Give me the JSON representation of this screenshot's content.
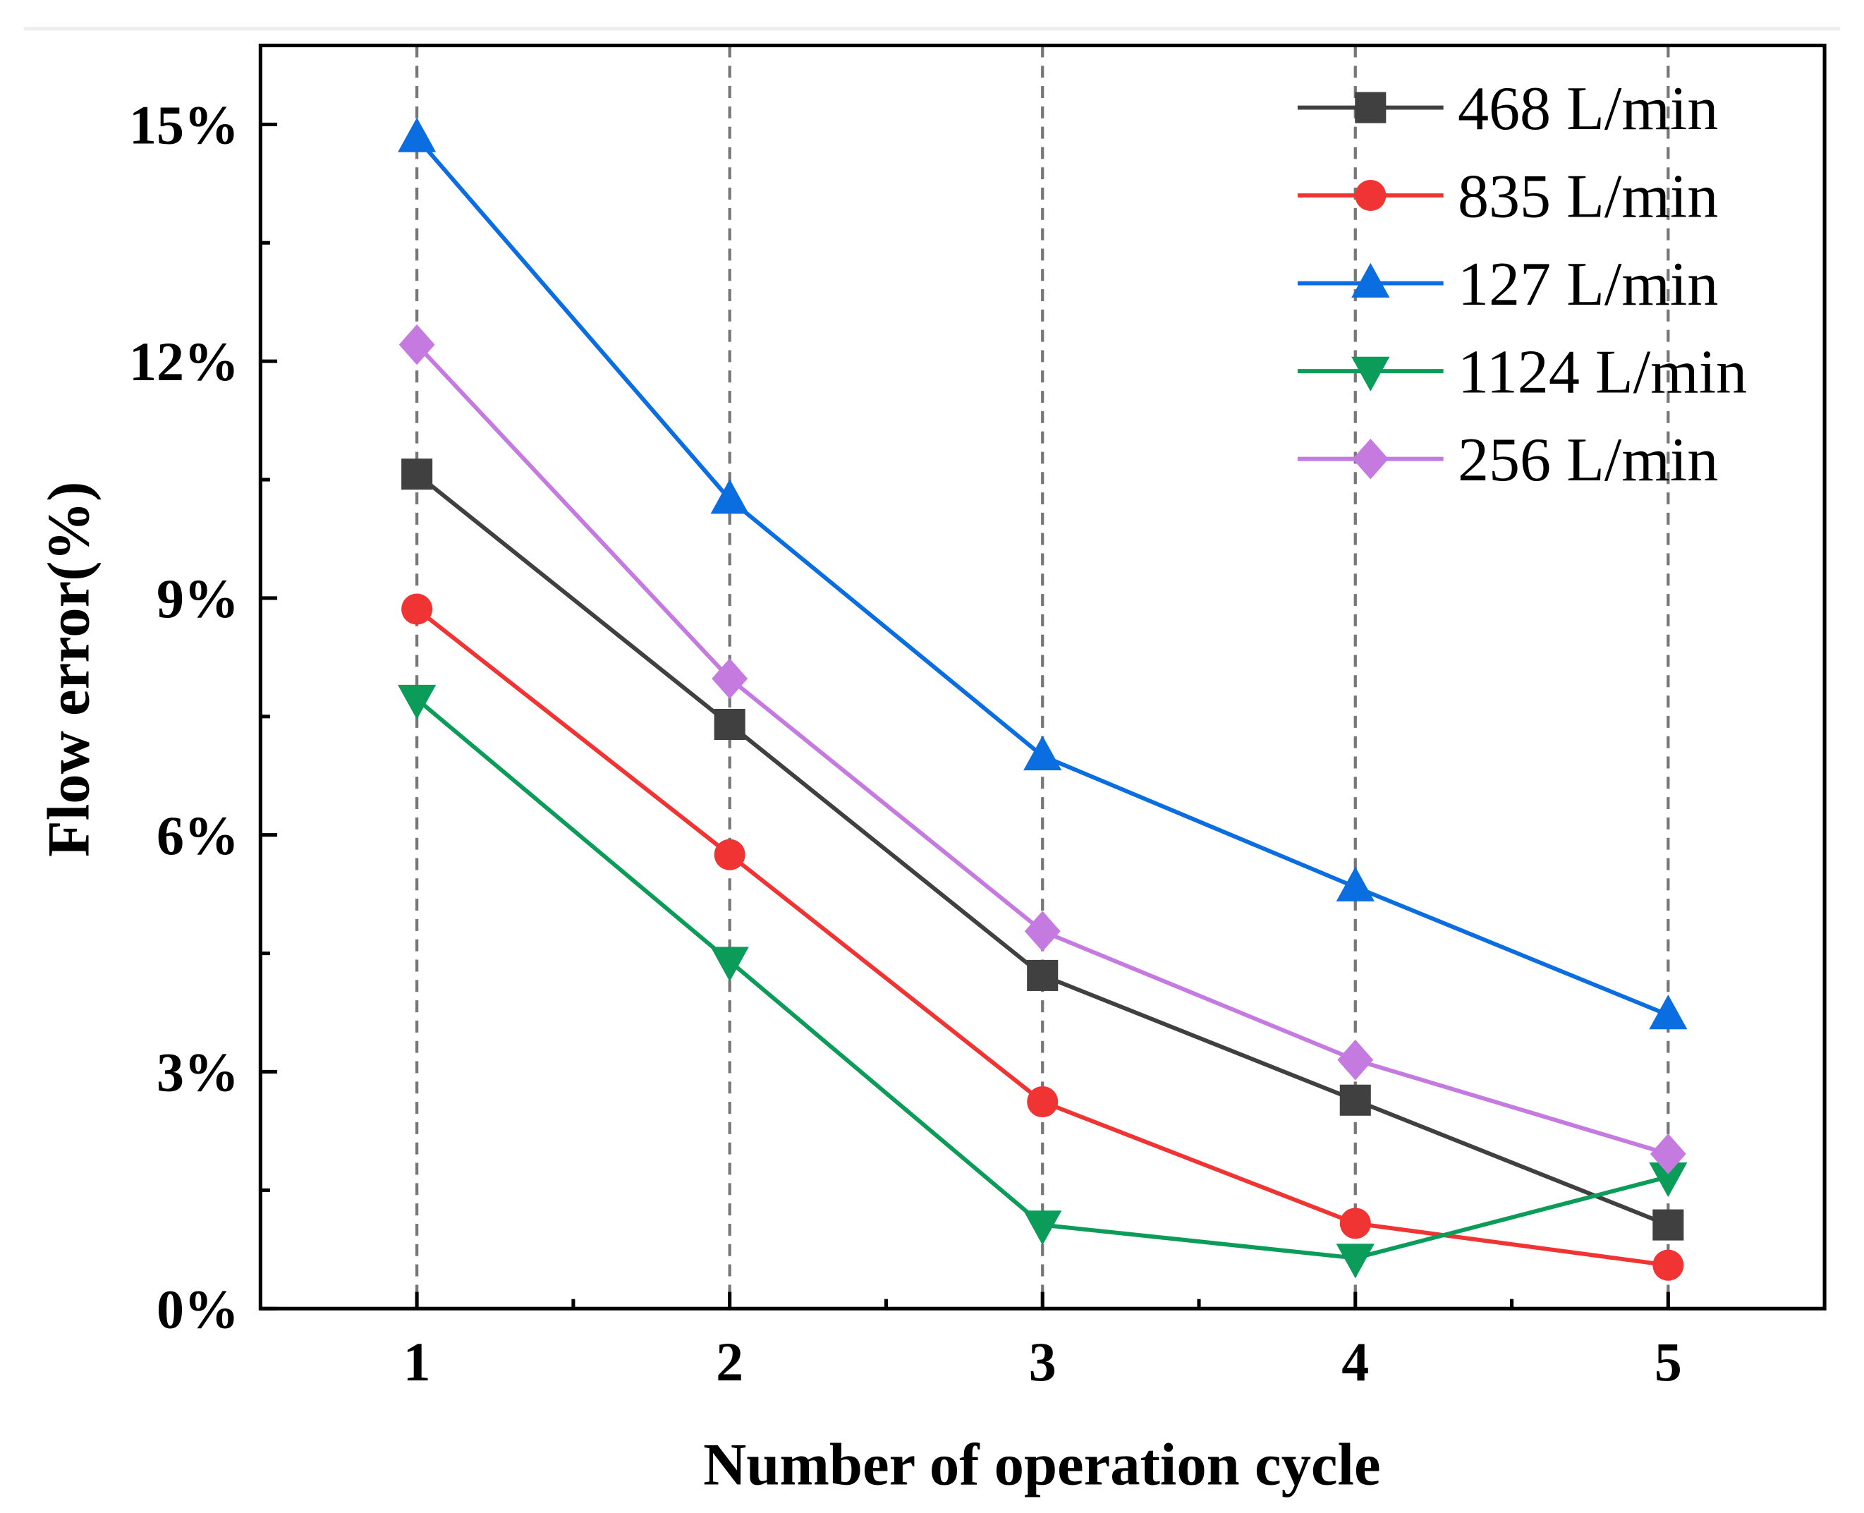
{
  "chart_data": {
    "type": "line",
    "title": "",
    "xlabel": "Number of operation cycle",
    "ylabel": "Flow error(%)",
    "x": [
      1,
      2,
      3,
      4,
      5
    ],
    "xlim": [
      0.5,
      5.5
    ],
    "ylim": [
      0,
      16
    ],
    "x_ticks": [
      1,
      2,
      3,
      4,
      5
    ],
    "x_tick_labels": [
      "1",
      "2",
      "3",
      "4",
      "5"
    ],
    "y_ticks": [
      0,
      3,
      6,
      9,
      12,
      15
    ],
    "y_tick_labels": [
      "0%",
      "3%",
      "6%",
      "9%",
      "12%",
      "15%"
    ],
    "grid": "vertical dashed lines at x ticks",
    "legend_position": "top-right",
    "series": [
      {
        "name": "468 L/min",
        "color": "#404040",
        "marker": "square",
        "values": [
          10.57,
          7.4,
          4.22,
          2.64,
          1.06
        ]
      },
      {
        "name": "835 L/min",
        "color": "#f03434",
        "marker": "circle",
        "values": [
          8.86,
          5.75,
          2.62,
          1.08,
          0.55
        ]
      },
      {
        "name": "127 L/min",
        "color": "#0b6ee0",
        "marker": "triangle-up",
        "values": [
          14.83,
          10.25,
          7.0,
          5.34,
          3.72
        ]
      },
      {
        "name": "1124 L/min",
        "color": "#0c9c5a",
        "marker": "triangle-down",
        "values": [
          7.72,
          4.4,
          1.06,
          0.64,
          1.67
        ]
      },
      {
        "name": "256 L/min",
        "color": "#c57ae0",
        "marker": "diamond",
        "values": [
          12.21,
          7.98,
          4.78,
          3.15,
          1.96
        ]
      }
    ]
  }
}
